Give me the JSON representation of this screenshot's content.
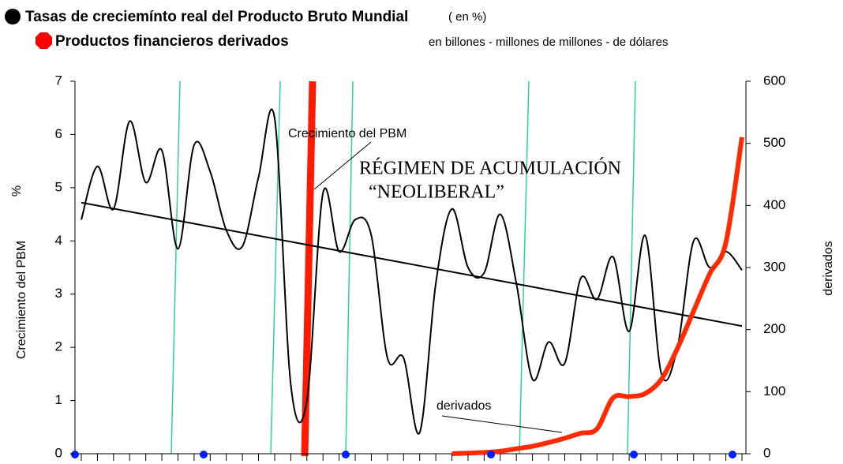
{
  "chart_data": {
    "type": "line",
    "legend": [
      {
        "name": "Tasas de creciemínto real del Producto Bruto Mundial",
        "note": "( en %)",
        "color": "#000000"
      },
      {
        "name": "Productos financieros derivados",
        "note": "en billones - millones de millones - de dólares",
        "color": "#ff0000"
      }
    ],
    "ylabel": "Crecimiento del PBM",
    "ylabel_unit": "%",
    "y2label": "derivados",
    "annotations": [
      "Crecimiento del PBM",
      "RÉGIMEN DE ACUMULACIÓN",
      "“NEOLIBERAL”",
      "derivados"
    ],
    "categories": [
      null,
      null,
      null,
      null,
      null,
      null,
      null,
      null,
      null,
      null,
      null,
      null,
      null,
      null,
      null,
      null,
      null,
      null,
      null,
      null,
      null,
      null,
      null,
      null,
      null,
      null,
      null,
      null,
      null,
      null,
      null,
      null,
      null,
      null,
      null,
      null,
      null,
      null,
      null,
      null,
      null,
      null
    ],
    "series": [
      {
        "color": "#000000",
        "values": [
          4.4,
          5.4,
          4.6,
          6.25,
          5.1,
          5.7,
          3.85,
          5.8,
          5.3,
          4.2,
          3.9,
          5.2,
          6.3,
          1.3,
          1.0,
          4.9,
          3.8,
          4.4,
          4.1,
          1.8,
          1.8,
          0.4,
          3.2,
          4.6,
          3.5,
          3.4,
          4.5,
          3.2,
          1.4,
          2.1,
          1.7,
          3.3,
          2.9,
          3.7,
          2.3,
          4.1,
          1.5,
          2.0,
          4.0,
          3.5,
          3.8,
          3.45
        ]
      },
      {
        "color": "#000000",
        "x": [
          0,
          41
        ],
        "values": [
          4.72,
          2.4
        ]
      },
      {
        "color": "#ff2a00",
        "axis": "y2",
        "values": [
          null,
          null,
          null,
          null,
          null,
          null,
          null,
          null,
          null,
          null,
          null,
          null,
          null,
          null,
          null,
          null,
          null,
          null,
          null,
          null,
          null,
          null,
          null,
          0,
          1,
          2,
          4,
          8,
          12,
          18,
          25,
          33,
          40,
          90,
          92,
          97,
          120,
          170,
          230,
          290,
          340,
          510
        ]
      }
    ],
    "ylim": [
      0,
      7
    ],
    "yticks": [
      0,
      1,
      2,
      3,
      4,
      5,
      6,
      7
    ],
    "y2lim": [
      0,
      600
    ],
    "y2ticks": [
      0,
      100,
      200,
      300,
      400,
      500,
      600
    ]
  }
}
